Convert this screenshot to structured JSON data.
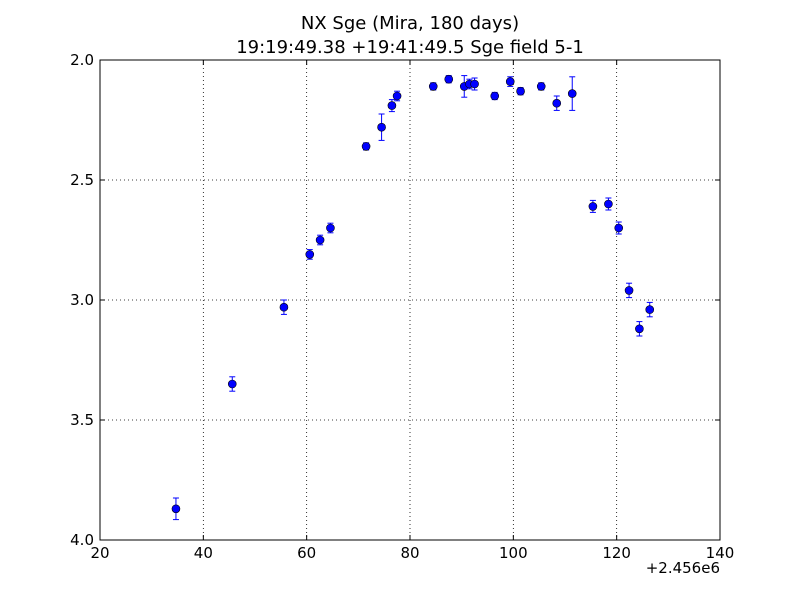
{
  "chart_data": {
    "type": "scatter",
    "title": "NX Sge (Mira, 180 days)",
    "subtitle": "19:19:49.38 +19:41:49.5 Sge field 5-1",
    "xlabel": "",
    "ylabel": "",
    "x_offset_label": "+2.456e6",
    "xlim": [
      20,
      140
    ],
    "ylim": [
      2.0,
      4.0
    ],
    "y_inverted": true,
    "grid": true,
    "x_ticks": [
      "20",
      "40",
      "60",
      "80",
      "100",
      "120",
      "140"
    ],
    "y_ticks": [
      "2.0",
      "2.5",
      "3.0",
      "3.5",
      "4.0"
    ],
    "marker_color": "#0000ff",
    "points": [
      {
        "x": 34.7,
        "y": 3.87,
        "err": 0.045
      },
      {
        "x": 45.6,
        "y": 3.35,
        "err": 0.03
      },
      {
        "x": 55.6,
        "y": 3.03,
        "err": 0.03
      },
      {
        "x": 60.6,
        "y": 2.81,
        "err": 0.02
      },
      {
        "x": 62.6,
        "y": 2.75,
        "err": 0.02
      },
      {
        "x": 64.6,
        "y": 2.7,
        "err": 0.02
      },
      {
        "x": 71.5,
        "y": 2.36,
        "err": 0.015
      },
      {
        "x": 74.5,
        "y": 2.28,
        "err": 0.055
      },
      {
        "x": 76.5,
        "y": 2.19,
        "err": 0.025
      },
      {
        "x": 77.5,
        "y": 2.15,
        "err": 0.02
      },
      {
        "x": 84.5,
        "y": 2.11,
        "err": 0.015
      },
      {
        "x": 87.5,
        "y": 2.08,
        "err": 0.015
      },
      {
        "x": 90.5,
        "y": 2.11,
        "err": 0.045
      },
      {
        "x": 91.5,
        "y": 2.1,
        "err": 0.02
      },
      {
        "x": 92.5,
        "y": 2.1,
        "err": 0.025
      },
      {
        "x": 96.4,
        "y": 2.15,
        "err": 0.015
      },
      {
        "x": 99.4,
        "y": 2.09,
        "err": 0.02
      },
      {
        "x": 101.4,
        "y": 2.13,
        "err": 0.015
      },
      {
        "x": 105.4,
        "y": 2.11,
        "err": 0.015
      },
      {
        "x": 108.4,
        "y": 2.18,
        "err": 0.03
      },
      {
        "x": 111.4,
        "y": 2.14,
        "err": 0.07
      },
      {
        "x": 115.4,
        "y": 2.61,
        "err": 0.025
      },
      {
        "x": 118.4,
        "y": 2.6,
        "err": 0.025
      },
      {
        "x": 120.4,
        "y": 2.7,
        "err": 0.025
      },
      {
        "x": 122.4,
        "y": 2.96,
        "err": 0.03
      },
      {
        "x": 124.4,
        "y": 3.12,
        "err": 0.03
      },
      {
        "x": 126.4,
        "y": 3.04,
        "err": 0.03
      }
    ]
  }
}
